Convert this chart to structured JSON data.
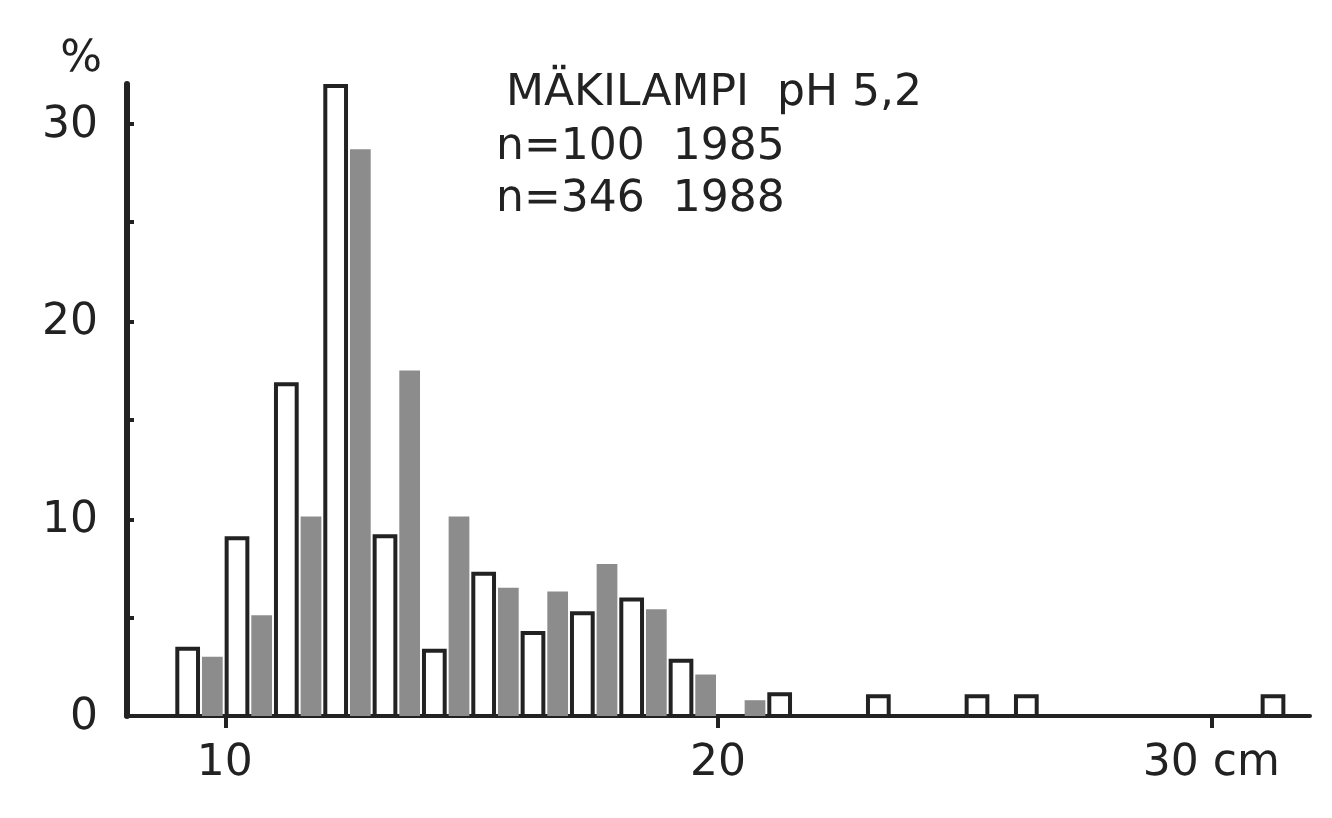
{
  "chart_data": {
    "type": "histogram",
    "title": "MÄKILAMPI  pH 5,2",
    "annotations": [
      "n=100  1985",
      "n=346  1988"
    ],
    "ylabel": "%",
    "bins": [
      9,
      10,
      11,
      12,
      13,
      14,
      15,
      16,
      17,
      18,
      19,
      20,
      21,
      22,
      23,
      24,
      25,
      26,
      27,
      28,
      29,
      30,
      31,
      32
    ],
    "series": [
      {
        "color": "#ffffff",
        "values": [
          3.4,
          9.0,
          16.8,
          31.9,
          9.1,
          3.3,
          7.2,
          4.2,
          5.2,
          5.9,
          2.8,
          0,
          1.1,
          0,
          1,
          0,
          1,
          1,
          0,
          0,
          0,
          0,
          1
        ]
      },
      {
        "color": "#8c8c8c",
        "values": [
          3.0,
          5.1,
          10.1,
          28.7,
          17.5,
          10.1,
          6.5,
          6.3,
          7.7,
          5.4,
          2.1,
          0.8,
          0,
          0,
          0,
          0,
          0,
          0,
          0,
          0,
          0,
          0,
          0
        ]
      }
    ],
    "xlim": [
      8,
      32
    ],
    "xticks": [
      10,
      20,
      {
        "value": 30,
        "label": "30 cm"
      }
    ],
    "ylim": [
      0,
      32
    ],
    "yticks": [
      0,
      {
        "value": 5,
        "label": null
      },
      10,
      {
        "value": 15,
        "label": null
      },
      20,
      {
        "value": 25,
        "label": null
      },
      30
    ],
    "grid": false
  }
}
